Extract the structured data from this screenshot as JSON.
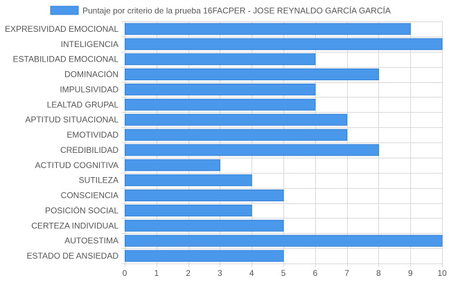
{
  "chart_data": {
    "type": "bar",
    "orientation": "horizontal",
    "legend": {
      "label": "Puntaje por criterio de la prueba 16FACPER - JOSE REYNALDO GARCÍA GARCÍA",
      "position": "top"
    },
    "categories": [
      "EXPRESIVIDAD EMOCIONAL",
      "INTELIGENCIA",
      "ESTABILIDAD EMOCIONAL",
      "DOMINACIÓN",
      "IMPULSIVIDAD",
      "LEALTAD GRUPAL",
      "APTITUD SITUACIONAL",
      "EMOTIVIDAD",
      "CREDIBILIDAD",
      "ACTITUD COGNITIVA",
      "SUTILEZA",
      "CONSCIENCIA",
      "POSICIÓN SOCIAL",
      "CERTEZA INDIVIDUAL",
      "AUTOESTIMA",
      "ESTADO DE ANSIEDAD"
    ],
    "series": [
      {
        "name": "Puntaje por criterio de la prueba 16FACPER - JOSE REYNALDO GARCÍA GARCÍA",
        "values": [
          9,
          10,
          6,
          8,
          6,
          6,
          7,
          7,
          8,
          3,
          4,
          5,
          4,
          5,
          10,
          5
        ]
      }
    ],
    "xlim": [
      0,
      10
    ],
    "x_ticks": [
      "0",
      "1",
      "2",
      "3",
      "4",
      "5",
      "6",
      "7",
      "8",
      "9",
      "10"
    ],
    "grid": true,
    "colors": {
      "bar_fill": "#4a98eb",
      "bar_stroke": "#2f7fd6",
      "grid": "#d9d9d9",
      "text": "#555555"
    }
  }
}
